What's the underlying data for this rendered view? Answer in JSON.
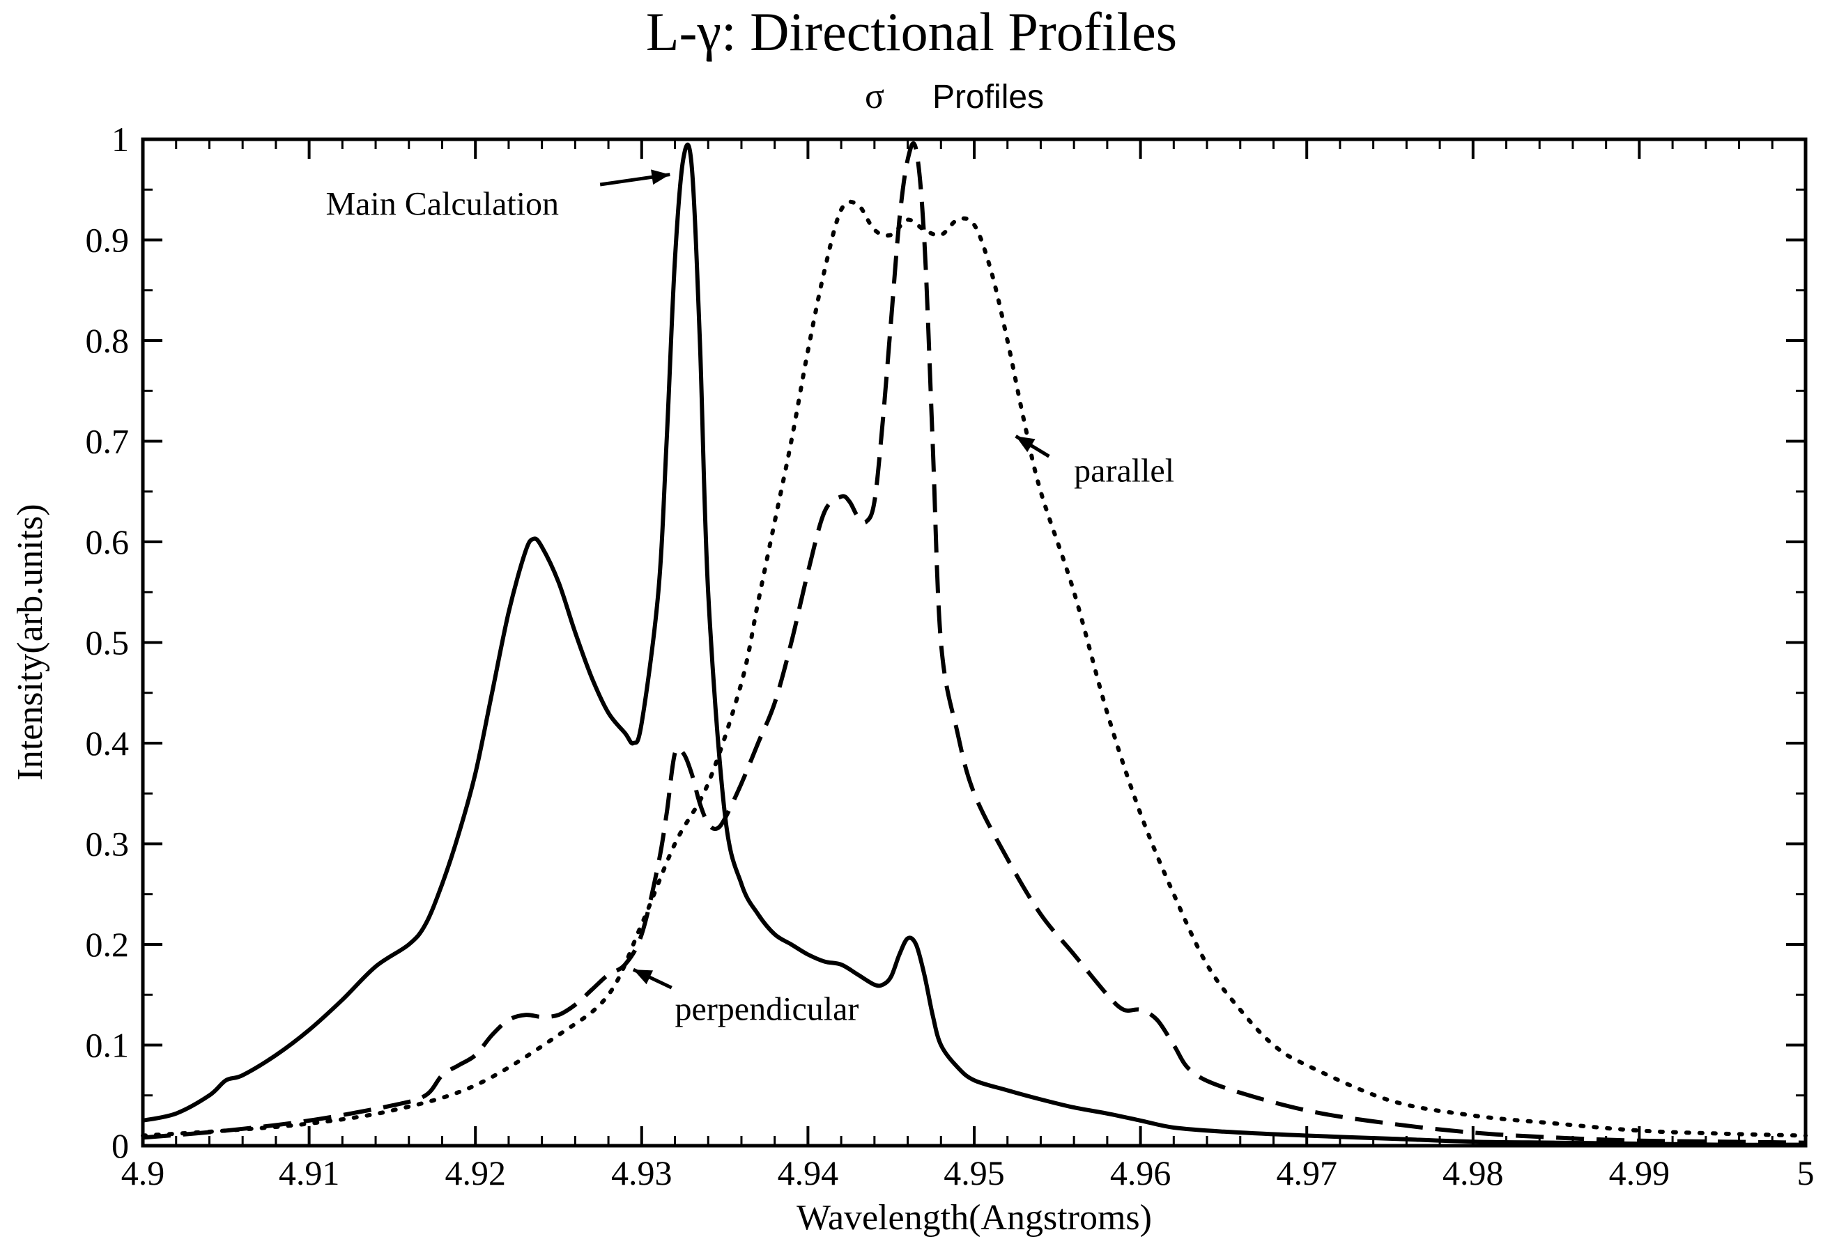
{
  "chart_data": {
    "type": "line",
    "title": "L-γ: Directional Profiles",
    "subtitle_symbol": "σ",
    "subtitle": "Profiles",
    "xlabel": "Wavelength(Angstroms)",
    "ylabel": "Intensity(arb.units)",
    "xlim": [
      4.9,
      5.0
    ],
    "ylim": [
      0,
      1
    ],
    "xticks": [
      "4.9",
      "4.91",
      "4.92",
      "4.93",
      "4.94",
      "4.95",
      "4.96",
      "4.97",
      "4.98",
      "4.99",
      "5"
    ],
    "yticks": [
      "0",
      "0.1",
      "0.2",
      "0.3",
      "0.4",
      "0.5",
      "0.6",
      "0.7",
      "0.8",
      "0.9",
      "1"
    ],
    "grid": false,
    "series": [
      {
        "name": "Main Calculation",
        "style": "solid",
        "x": [
          4.9,
          4.902,
          4.904,
          4.905,
          4.906,
          4.908,
          4.91,
          4.912,
          4.914,
          4.916,
          4.917,
          4.918,
          4.919,
          4.92,
          4.921,
          4.922,
          4.923,
          4.9235,
          4.924,
          4.925,
          4.926,
          4.927,
          4.928,
          4.929,
          4.9295,
          4.93,
          4.931,
          4.9315,
          4.932,
          4.9325,
          4.933,
          4.9335,
          4.934,
          4.935,
          4.936,
          4.937,
          4.938,
          4.939,
          4.94,
          4.941,
          4.942,
          4.943,
          4.944,
          4.9445,
          4.945,
          4.9455,
          4.946,
          4.9465,
          4.947,
          4.9475,
          4.948,
          4.949,
          4.95,
          4.952,
          4.954,
          4.956,
          4.958,
          4.96,
          4.962,
          4.965,
          4.97,
          4.975,
          4.98,
          4.985,
          4.99,
          4.995,
          5.0
        ],
        "y": [
          0.025,
          0.032,
          0.05,
          0.065,
          0.07,
          0.09,
          0.115,
          0.145,
          0.178,
          0.2,
          0.22,
          0.26,
          0.31,
          0.37,
          0.45,
          0.53,
          0.59,
          0.603,
          0.595,
          0.56,
          0.51,
          0.465,
          0.43,
          0.41,
          0.4,
          0.42,
          0.55,
          0.7,
          0.88,
          0.98,
          0.975,
          0.8,
          0.55,
          0.33,
          0.26,
          0.23,
          0.21,
          0.2,
          0.19,
          0.183,
          0.18,
          0.17,
          0.16,
          0.16,
          0.168,
          0.19,
          0.206,
          0.2,
          0.17,
          0.13,
          0.1,
          0.078,
          0.065,
          0.055,
          0.046,
          0.038,
          0.032,
          0.025,
          0.018,
          0.014,
          0.01,
          0.007,
          0.004,
          0.003,
          0.002,
          0.001,
          0.001
        ]
      },
      {
        "name": "perpendicular",
        "style": "dashed",
        "x": [
          4.9,
          4.905,
          4.91,
          4.915,
          4.917,
          4.918,
          4.919,
          4.92,
          4.921,
          4.922,
          4.923,
          4.924,
          4.925,
          4.926,
          4.927,
          4.928,
          4.929,
          4.93,
          4.931,
          4.9315,
          4.932,
          4.9325,
          4.933,
          4.9335,
          4.934,
          4.9345,
          4.935,
          4.936,
          4.937,
          4.938,
          4.939,
          4.94,
          4.941,
          4.942,
          4.9425,
          4.943,
          4.9435,
          4.944,
          4.9445,
          4.945,
          4.9455,
          4.946,
          4.9465,
          4.947,
          4.9475,
          4.948,
          4.949,
          4.95,
          4.952,
          4.954,
          4.956,
          4.958,
          4.959,
          4.96,
          4.961,
          4.962,
          4.963,
          4.965,
          4.97,
          4.975,
          4.98,
          4.985,
          4.99,
          4.995,
          5.0
        ],
        "y": [
          0.008,
          0.015,
          0.025,
          0.04,
          0.05,
          0.07,
          0.08,
          0.09,
          0.11,
          0.125,
          0.13,
          0.128,
          0.13,
          0.14,
          0.155,
          0.17,
          0.18,
          0.21,
          0.28,
          0.33,
          0.39,
          0.39,
          0.37,
          0.34,
          0.32,
          0.315,
          0.325,
          0.36,
          0.4,
          0.44,
          0.5,
          0.57,
          0.63,
          0.645,
          0.64,
          0.625,
          0.62,
          0.64,
          0.72,
          0.82,
          0.92,
          0.98,
          0.99,
          0.9,
          0.7,
          0.5,
          0.41,
          0.35,
          0.285,
          0.23,
          0.19,
          0.15,
          0.135,
          0.135,
          0.125,
          0.1,
          0.075,
          0.058,
          0.035,
          0.022,
          0.013,
          0.008,
          0.005,
          0.004,
          0.003
        ]
      },
      {
        "name": "parallel",
        "style": "dotted",
        "x": [
          4.9,
          4.905,
          4.91,
          4.915,
          4.92,
          4.925,
          4.928,
          4.93,
          4.932,
          4.934,
          4.936,
          4.937,
          4.938,
          4.939,
          4.94,
          4.941,
          4.942,
          4.943,
          4.944,
          4.945,
          4.946,
          4.947,
          4.948,
          4.949,
          4.95,
          4.951,
          4.952,
          4.953,
          4.954,
          4.956,
          4.958,
          4.96,
          4.962,
          4.964,
          4.966,
          4.968,
          4.97,
          4.975,
          4.98,
          4.985,
          4.99,
          4.995,
          5.0
        ],
        "y": [
          0.01,
          0.015,
          0.022,
          0.035,
          0.06,
          0.11,
          0.15,
          0.22,
          0.3,
          0.36,
          0.46,
          0.54,
          0.62,
          0.7,
          0.79,
          0.87,
          0.93,
          0.935,
          0.91,
          0.905,
          0.92,
          0.91,
          0.905,
          0.92,
          0.915,
          0.87,
          0.8,
          0.72,
          0.65,
          0.55,
          0.43,
          0.33,
          0.25,
          0.18,
          0.135,
          0.1,
          0.08,
          0.045,
          0.03,
          0.022,
          0.015,
          0.012,
          0.01
        ]
      }
    ],
    "annotations": [
      {
        "text": "Main Calculation",
        "x": 4.911,
        "y": 0.925,
        "arrow_to": [
          4.9317,
          0.965
        ]
      },
      {
        "text": "parallel",
        "x": 4.956,
        "y": 0.66,
        "arrow_to": [
          4.9525,
          0.705
        ]
      },
      {
        "text": "perpendicular",
        "x": 4.932,
        "y": 0.125,
        "arrow_to": [
          4.9295,
          0.175
        ]
      }
    ]
  }
}
